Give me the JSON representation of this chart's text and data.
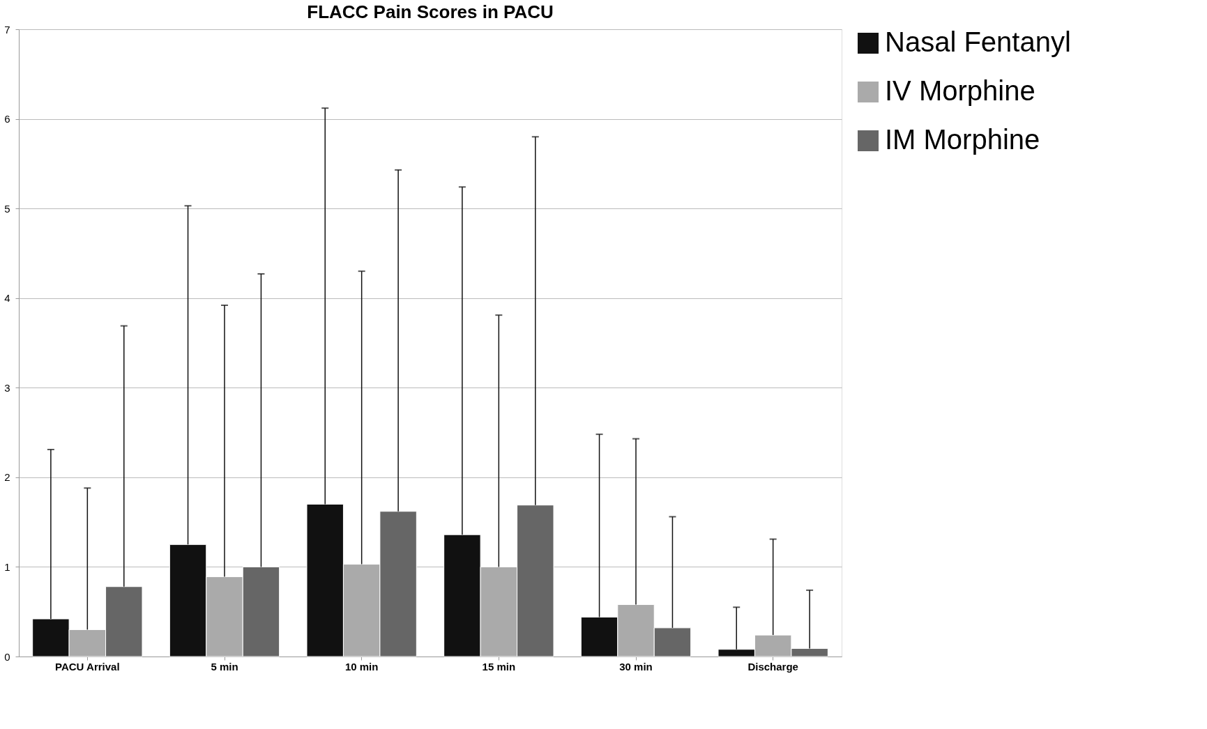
{
  "chart_data": {
    "type": "bar",
    "title": "FLACC Pain Scores in PACU",
    "categories": [
      "PACU Arrival",
      "5 min",
      "10 min",
      "15 min",
      "30 min",
      "Discharge"
    ],
    "series": [
      {
        "name": "Nasal Fentanyl",
        "color": "#111111",
        "values": [
          0.42,
          1.25,
          1.7,
          1.36,
          0.44,
          0.08
        ],
        "errors": [
          [
            0.42,
            2.31
          ],
          [
            1.25,
            5.03
          ],
          [
            1.7,
            6.12
          ],
          [
            1.36,
            5.24
          ],
          [
            0.44,
            2.48
          ],
          [
            0.08,
            0.55
          ]
        ]
      },
      {
        "name": "IV Morphine",
        "color": "#aaaaaa",
        "values": [
          0.3,
          0.89,
          1.03,
          1.0,
          0.58,
          0.24
        ],
        "errors": [
          [
            0.3,
            1.88
          ],
          [
            0.89,
            3.92
          ],
          [
            1.03,
            4.3
          ],
          [
            1.0,
            3.81
          ],
          [
            0.58,
            2.43
          ],
          [
            0.24,
            1.31
          ]
        ]
      },
      {
        "name": "IM Morphine",
        "color": "#666666",
        "values": [
          0.78,
          1.0,
          1.62,
          1.69,
          0.32,
          0.09
        ],
        "errors": [
          [
            0.78,
            3.69
          ],
          [
            1.0,
            4.27
          ],
          [
            1.62,
            5.43
          ],
          [
            1.69,
            5.8
          ],
          [
            0.32,
            1.56
          ],
          [
            0.09,
            0.74
          ]
        ]
      }
    ],
    "ylim": [
      0,
      7
    ],
    "yticks": [
      0,
      1,
      2,
      3,
      4,
      5,
      6,
      7
    ],
    "grid": "y",
    "legend": "right"
  }
}
